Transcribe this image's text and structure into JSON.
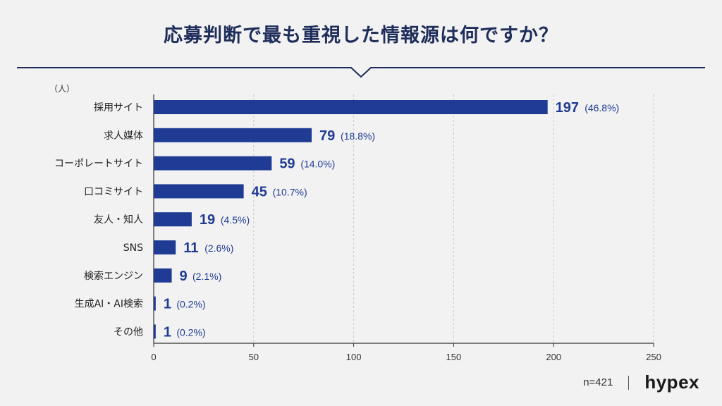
{
  "title": "応募判断で最も重視した情報源は何ですか？",
  "footer": {
    "n": "n=421",
    "logo": "hypex"
  },
  "colors": {
    "bar": "#1f3b94",
    "accent": "#1f2d5a",
    "grid": "#c8c8c8"
  },
  "chart_data": {
    "type": "bar",
    "orientation": "horizontal",
    "unit_label": "（人）",
    "categories": [
      "採用サイト",
      "求人媒体",
      "コーポレートサイト",
      "口コミサイト",
      "友人・知人",
      "SNS",
      "検索エンジン",
      "生成AI・AI検索",
      "その他"
    ],
    "values": [
      197,
      79,
      59,
      45,
      19,
      11,
      9,
      1,
      1
    ],
    "percent_labels": [
      "(46.8%)",
      "(18.8%)",
      "(14.0%)",
      "(10.7%)",
      "(4.5%)",
      "(2.6%)",
      "(2.1%)",
      "(0.2%)",
      "(0.2%)"
    ],
    "xlim": [
      0,
      250
    ],
    "xticks": [
      0,
      50,
      100,
      150,
      200,
      250
    ],
    "grid": true
  }
}
